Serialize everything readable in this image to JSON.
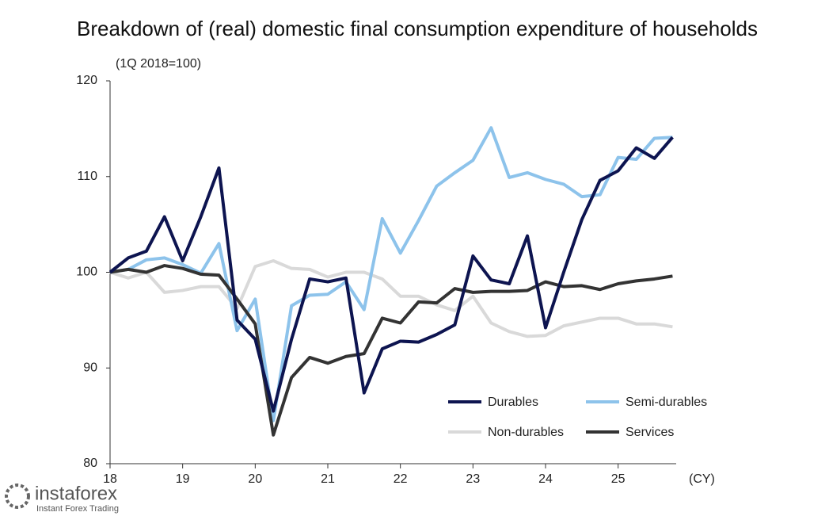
{
  "chart_data": {
    "type": "line",
    "title": "Breakdown of (real) domestic final consumption expenditure of households",
    "y_label": "(1Q 2018=100)",
    "x_label": "(CY)",
    "watermark": "instaforex",
    "watermark_sub": "Instant Forex Trading",
    "x": [
      18,
      18.25,
      18.5,
      18.75,
      19,
      19.25,
      19.5,
      19.75,
      20,
      20.25,
      20.5,
      20.75,
      21,
      21.25,
      21.5,
      21.75,
      22,
      22.25,
      22.5,
      22.75,
      23,
      23.25,
      23.5,
      23.75,
      24,
      24.25,
      24.5,
      24.75,
      25,
      25.25,
      25.5,
      25.75
    ],
    "xlim": [
      18,
      25.8
    ],
    "xticks": [
      18,
      19,
      20,
      21,
      22,
      23,
      24,
      25
    ],
    "ylim": [
      80,
      120
    ],
    "yticks": [
      80,
      90,
      100,
      110,
      120
    ],
    "legend": "lower right",
    "series": [
      {
        "name": "Durables",
        "color": "#0d1450",
        "values": [
          100,
          101.5,
          102.2,
          105.8,
          101.2,
          105.8,
          110.9,
          95,
          93,
          85.5,
          93,
          99.3,
          99,
          99.4,
          87.4,
          92,
          92.8,
          92.7,
          93.5,
          94.5,
          101.7,
          99.2,
          98.8,
          103.8,
          94.2,
          100,
          105.5,
          109.6,
          110.6,
          113,
          111.9,
          114.1
        ]
      },
      {
        "name": "Semi-durables",
        "color": "#8dc3eb",
        "values": [
          100,
          100.3,
          101.3,
          101.5,
          100.8,
          99.9,
          103,
          93.9,
          97.2,
          84.5,
          96.5,
          97.6,
          97.7,
          99,
          96.1,
          105.6,
          102,
          105.4,
          109,
          110.4,
          111.7,
          115.1,
          109.9,
          110.4,
          109.7,
          109.2,
          107.9,
          108.1,
          112,
          111.8,
          114,
          114.1
        ]
      },
      {
        "name": "Non-durables",
        "color": "#d9d9d9",
        "values": [
          100,
          99.4,
          100,
          97.9,
          98.1,
          98.5,
          98.5,
          96.2,
          100.6,
          101.2,
          100.4,
          100.3,
          99.5,
          100,
          100,
          99.3,
          97.5,
          97.5,
          96.6,
          96,
          97.5,
          94.7,
          93.8,
          93.3,
          93.4,
          94.4,
          94.8,
          95.2,
          95.2,
          94.6,
          94.6,
          94.3
        ]
      },
      {
        "name": "Services",
        "color": "#333333",
        "values": [
          100,
          100.3,
          100,
          100.7,
          100.4,
          99.8,
          99.7,
          97.2,
          94.6,
          83,
          89,
          91.1,
          90.5,
          91.2,
          91.5,
          95.2,
          94.7,
          96.9,
          96.8,
          98.3,
          97.9,
          98,
          98,
          98.1,
          99,
          98.5,
          98.6,
          98.2,
          98.8,
          99.1,
          99.3,
          99.6
        ]
      }
    ]
  }
}
